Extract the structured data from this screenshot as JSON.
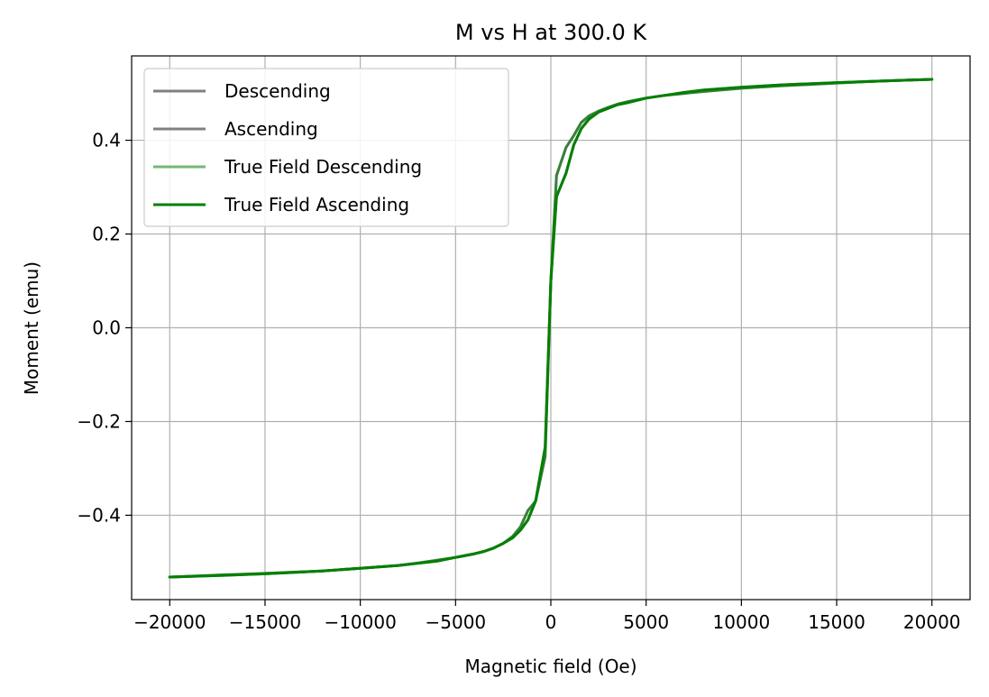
{
  "chart_data": {
    "type": "line",
    "title": "M vs H at 300.0 K",
    "xlabel": "Magnetic field (Oe)",
    "ylabel": "Moment (emu)",
    "xlim": [
      -22000,
      22000
    ],
    "ylim": [
      -0.58,
      0.58
    ],
    "xticks": [
      -20000,
      -15000,
      -10000,
      -5000,
      0,
      5000,
      10000,
      15000,
      20000
    ],
    "xtick_labels": [
      "−20000",
      "−15000",
      "−10000",
      "−5000",
      "0",
      "5000",
      "10000",
      "15000",
      "20000"
    ],
    "yticks": [
      -0.4,
      -0.2,
      0.0,
      0.2,
      0.4
    ],
    "ytick_labels": [
      "−0.4",
      "−0.2",
      "0.0",
      "0.2",
      "0.4"
    ],
    "grid": true,
    "legend_position": "top-left",
    "series": [
      {
        "name": "Descending",
        "color": "#808080",
        "opacity": 1.0,
        "x": [
          20000,
          17000,
          15000,
          12000,
          10000,
          8000,
          6000,
          5000,
          4000,
          3500,
          3000,
          2500,
          2000,
          1600,
          1200,
          800,
          300,
          0,
          -300,
          -800,
          -1200,
          -1600,
          -2000,
          -2500,
          -3000,
          -3500,
          -4000,
          -5000,
          -6000,
          -7000,
          -8000,
          -10000,
          -12000,
          -15000,
          -17000,
          -20000
        ],
        "y": [
          0.53,
          0.526,
          0.522,
          0.516,
          0.511,
          0.504,
          0.496,
          0.49,
          0.482,
          0.477,
          0.47,
          0.462,
          0.452,
          0.438,
          0.41,
          0.385,
          0.325,
          0.1,
          -0.275,
          -0.37,
          -0.39,
          -0.425,
          -0.445,
          -0.46,
          -0.47,
          -0.477,
          -0.482,
          -0.49,
          -0.496,
          -0.502,
          -0.507,
          -0.513,
          -0.519,
          -0.524,
          -0.527,
          -0.532
        ]
      },
      {
        "name": "Ascending",
        "color": "#808080",
        "opacity": 1.0,
        "x": [
          -20000,
          -17000,
          -15000,
          -12000,
          -10000,
          -8000,
          -6000,
          -5000,
          -4000,
          -3500,
          -3000,
          -2500,
          -2000,
          -1600,
          -1200,
          -800,
          -300,
          0,
          300,
          800,
          1200,
          1600,
          2000,
          2500,
          3000,
          3500,
          4000,
          5000,
          6000,
          7000,
          8000,
          10000,
          12000,
          15000,
          17000,
          20000
        ],
        "y": [
          -0.532,
          -0.528,
          -0.525,
          -0.519,
          -0.513,
          -0.507,
          -0.498,
          -0.49,
          -0.482,
          -0.477,
          -0.47,
          -0.46,
          -0.448,
          -0.432,
          -0.41,
          -0.37,
          -0.255,
          0.1,
          0.28,
          0.33,
          0.39,
          0.425,
          0.445,
          0.46,
          0.468,
          0.476,
          0.48,
          0.49,
          0.496,
          0.502,
          0.507,
          0.513,
          0.518,
          0.523,
          0.526,
          0.53
        ]
      },
      {
        "name": "True Field Descending",
        "color": "#008000",
        "opacity": 0.55,
        "x": [
          20000,
          17000,
          15000,
          12000,
          10000,
          8000,
          6000,
          5000,
          4000,
          3500,
          3000,
          2500,
          2000,
          1600,
          1200,
          800,
          300,
          0,
          -300,
          -800,
          -1200,
          -1600,
          -2000,
          -2500,
          -3000,
          -3500,
          -4000,
          -5000,
          -6000,
          -7000,
          -8000,
          -10000,
          -12000,
          -15000,
          -17000,
          -20000
        ],
        "y": [
          0.53,
          0.526,
          0.522,
          0.516,
          0.511,
          0.504,
          0.496,
          0.49,
          0.482,
          0.477,
          0.47,
          0.462,
          0.452,
          0.438,
          0.41,
          0.385,
          0.325,
          0.1,
          -0.275,
          -0.37,
          -0.39,
          -0.425,
          -0.445,
          -0.46,
          -0.47,
          -0.477,
          -0.482,
          -0.49,
          -0.496,
          -0.502,
          -0.507,
          -0.513,
          -0.519,
          -0.524,
          -0.527,
          -0.532
        ]
      },
      {
        "name": "True Field Ascending",
        "color": "#008000",
        "opacity": 1.0,
        "x": [
          -20000,
          -17000,
          -15000,
          -12000,
          -10000,
          -8000,
          -6000,
          -5000,
          -4000,
          -3500,
          -3000,
          -2500,
          -2000,
          -1600,
          -1200,
          -800,
          -300,
          0,
          300,
          800,
          1200,
          1600,
          2000,
          2500,
          3000,
          3500,
          4000,
          5000,
          6000,
          7000,
          8000,
          10000,
          12000,
          15000,
          17000,
          20000
        ],
        "y": [
          -0.532,
          -0.528,
          -0.525,
          -0.519,
          -0.513,
          -0.507,
          -0.498,
          -0.49,
          -0.482,
          -0.477,
          -0.47,
          -0.46,
          -0.448,
          -0.432,
          -0.41,
          -0.37,
          -0.255,
          0.1,
          0.28,
          0.33,
          0.39,
          0.425,
          0.445,
          0.46,
          0.468,
          0.476,
          0.48,
          0.49,
          0.496,
          0.502,
          0.507,
          0.513,
          0.518,
          0.523,
          0.526,
          0.53
        ]
      }
    ]
  }
}
